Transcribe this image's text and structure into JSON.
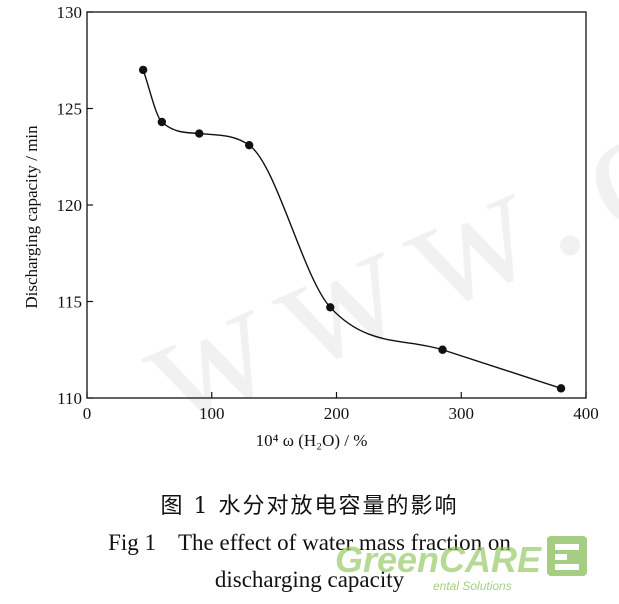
{
  "chart_data": {
    "type": "line",
    "x": [
      45,
      60,
      90,
      130,
      195,
      285,
      380
    ],
    "y": [
      127.0,
      124.3,
      123.7,
      123.1,
      114.7,
      112.5,
      110.5
    ],
    "xlabel": "10⁴ ω (H₂O) / %",
    "ylabel": "Discharging capacity / min",
    "xlim": [
      0,
      400
    ],
    "ylim": [
      110,
      130
    ],
    "x_ticks": [
      0,
      100,
      200,
      300,
      400
    ],
    "y_ticks": [
      110,
      115,
      120,
      125,
      130
    ],
    "grid": false,
    "marker": "filled-circle",
    "smooth": true
  },
  "caption": {
    "zh": "图 1  水分对放电容量的影响",
    "en_label": "Fig 1",
    "en_title_line1": "The effect of water mass fraction on",
    "en_title_line2": "discharging capacity"
  },
  "watermark": {
    "text": "www.c",
    "logo_text": "GreenCARE",
    "logo_subtext": "ental Solutions",
    "accent_color": "#7ab648"
  }
}
